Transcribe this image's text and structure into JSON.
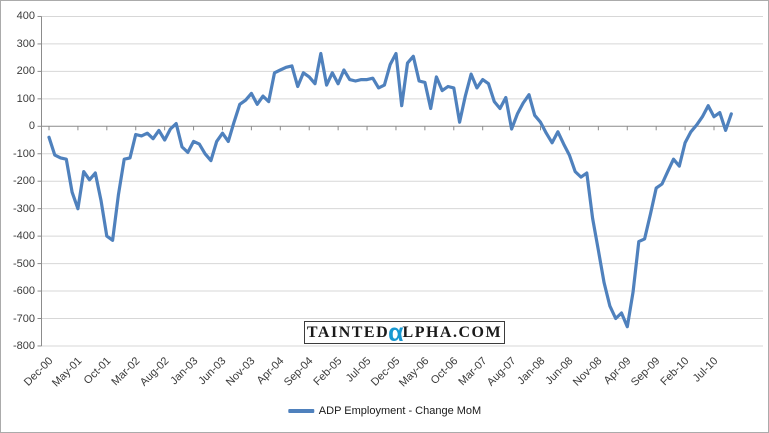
{
  "window": {
    "background": "#ffffff",
    "border_color": "#ababab"
  },
  "colors": {
    "line": "#4f81bd",
    "gridline": "#d7d7d7",
    "axis": "#8c8c8c",
    "label": "#3b3b3b"
  },
  "watermark": {
    "part1": "TAINTED",
    "alpha": "α",
    "part2": "LPHA.COM",
    "alpha_color": "#1898d1"
  },
  "legend": {
    "label": "ADP Employment - Change MoM",
    "swatch_color": "#4f81bd"
  },
  "axes": {
    "y_tick_labels": [
      "400",
      "300",
      "200",
      "100",
      "0",
      "-100",
      "-200",
      "-300",
      "-400",
      "-500",
      "-600",
      "-700",
      "-800"
    ],
    "x_tick_labels": [
      "Dec-00",
      "May-01",
      "Oct-01",
      "Mar-02",
      "Aug-02",
      "Jan-03",
      "Jun-03",
      "Nov-03",
      "Apr-04",
      "Sep-04",
      "Feb-05",
      "Jul-05",
      "Dec-05",
      "May-06",
      "Oct-06",
      "Mar-07",
      "Aug-07",
      "Jan-08",
      "Jun-08",
      "Nov-08",
      "Apr-09",
      "Sep-09",
      "Feb-10",
      "Jul-10"
    ]
  },
  "chart_data": {
    "type": "line",
    "title": "",
    "xlabel": "",
    "ylabel": "",
    "ylim": [
      -800,
      400
    ],
    "y_tick_step": 100,
    "x_tick_every": 5,
    "grid": "horizontal",
    "legend_position": "bottom",
    "series_name": "ADP Employment - Change MoM",
    "x": [
      "Dec-00",
      "Jan-01",
      "Feb-01",
      "Mar-01",
      "Apr-01",
      "May-01",
      "Jun-01",
      "Jul-01",
      "Aug-01",
      "Sep-01",
      "Oct-01",
      "Nov-01",
      "Dec-01",
      "Jan-02",
      "Feb-02",
      "Mar-02",
      "Apr-02",
      "May-02",
      "Jun-02",
      "Jul-02",
      "Aug-02",
      "Sep-02",
      "Oct-02",
      "Nov-02",
      "Dec-02",
      "Jan-03",
      "Feb-03",
      "Mar-03",
      "Apr-03",
      "May-03",
      "Jun-03",
      "Jul-03",
      "Aug-03",
      "Sep-03",
      "Oct-03",
      "Nov-03",
      "Dec-03",
      "Jan-04",
      "Feb-04",
      "Mar-04",
      "Apr-04",
      "May-04",
      "Jun-04",
      "Jul-04",
      "Aug-04",
      "Sep-04",
      "Oct-04",
      "Nov-04",
      "Dec-04",
      "Jan-05",
      "Feb-05",
      "Mar-05",
      "Apr-05",
      "May-05",
      "Jun-05",
      "Jul-05",
      "Aug-05",
      "Sep-05",
      "Oct-05",
      "Nov-05",
      "Dec-05",
      "Jan-06",
      "Feb-06",
      "Mar-06",
      "Apr-06",
      "May-06",
      "Jun-06",
      "Jul-06",
      "Aug-06",
      "Sep-06",
      "Oct-06",
      "Nov-06",
      "Dec-06",
      "Jan-07",
      "Feb-07",
      "Mar-07",
      "Apr-07",
      "May-07",
      "Jun-07",
      "Jul-07",
      "Aug-07",
      "Sep-07",
      "Oct-07",
      "Nov-07",
      "Dec-07",
      "Jan-08",
      "Feb-08",
      "Mar-08",
      "Apr-08",
      "May-08",
      "Jun-08",
      "Jul-08",
      "Aug-08",
      "Sep-08",
      "Oct-08",
      "Nov-08",
      "Dec-08",
      "Jan-09",
      "Feb-09",
      "Mar-09",
      "Apr-09",
      "May-09",
      "Jun-09",
      "Jul-09",
      "Aug-09",
      "Sep-09",
      "Oct-09",
      "Nov-09",
      "Dec-09",
      "Jan-10",
      "Feb-10",
      "Mar-10",
      "Apr-10",
      "May-10",
      "Jun-10",
      "Jul-10",
      "Aug-10",
      "Sep-10",
      "Oct-10"
    ],
    "values": [
      -40,
      -105,
      -115,
      -120,
      -240,
      -300,
      -165,
      -195,
      -170,
      -270,
      -400,
      -415,
      -250,
      -120,
      -115,
      -30,
      -35,
      -25,
      -45,
      -15,
      -50,
      -10,
      10,
      -75,
      -95,
      -55,
      -65,
      -100,
      -125,
      -55,
      -25,
      -55,
      15,
      80,
      95,
      120,
      80,
      110,
      90,
      195,
      205,
      215,
      220,
      145,
      195,
      180,
      155,
      265,
      150,
      195,
      155,
      205,
      170,
      165,
      170,
      170,
      175,
      140,
      150,
      225,
      265,
      75,
      230,
      255,
      165,
      160,
      65,
      180,
      130,
      145,
      140,
      15,
      110,
      190,
      140,
      170,
      155,
      90,
      65,
      105,
      -10,
      45,
      85,
      115,
      40,
      15,
      -25,
      -60,
      -20,
      -65,
      -105,
      -165,
      -185,
      -170,
      -335,
      -450,
      -570,
      -655,
      -700,
      -680,
      -730,
      -605,
      -420,
      -410,
      -320,
      -225,
      -210,
      -165,
      -120,
      -145,
      -60,
      -20,
      5,
      35,
      75,
      35,
      50,
      -15,
      45
    ]
  }
}
